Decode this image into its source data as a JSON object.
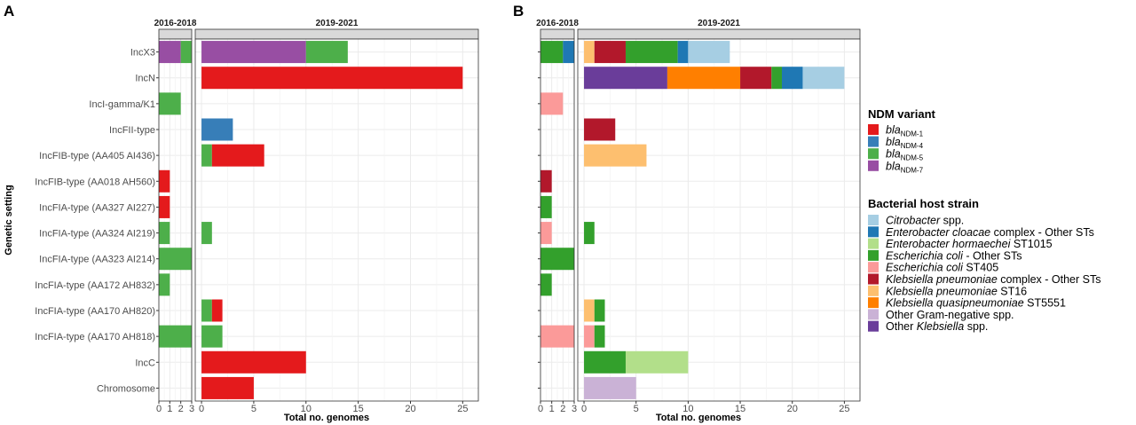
{
  "chart_data": [
    {
      "panel": "A",
      "type": "bar",
      "orientation": "horizontal",
      "stacked": true,
      "ylabel": "Genetic setting",
      "xlabel": "Total no. genomes",
      "categories": [
        "IncX3",
        "IncN",
        "IncI-gamma/K1",
        "IncFII-type",
        "IncFIB-type (AA405 AI436)",
        "IncFIB-type (AA018 AH560)",
        "IncFIA-type (AA327 AI227)",
        "IncFIA-type (AA324 AI219)",
        "IncFIA-type (AA323 AI214)",
        "IncFIA-type (AA172 AH832)",
        "IncFIA-type (AA170 AH820)",
        "IncFIA-type (AA170 AH818)",
        "IncC",
        "Chromosome"
      ],
      "facets": [
        {
          "label": "2016-2018",
          "xlim": [
            0,
            3
          ],
          "ticks": [
            0,
            1,
            2,
            3
          ],
          "bars": [
            {
              "category": "IncX3",
              "segments": [
                {
                  "series": "bla NDM-7",
                  "value": 2
                },
                {
                  "series": "bla NDM-5",
                  "value": 1
                }
              ]
            },
            {
              "category": "IncI-gamma/K1",
              "segments": [
                {
                  "series": "bla NDM-5",
                  "value": 2
                }
              ]
            },
            {
              "category": "IncFIB-type (AA018 AH560)",
              "segments": [
                {
                  "series": "bla NDM-1",
                  "value": 1
                }
              ]
            },
            {
              "category": "IncFIA-type (AA327 AI227)",
              "segments": [
                {
                  "series": "bla NDM-1",
                  "value": 1
                }
              ]
            },
            {
              "category": "IncFIA-type (AA324 AI219)",
              "segments": [
                {
                  "series": "bla NDM-5",
                  "value": 1
                }
              ]
            },
            {
              "category": "IncFIA-type (AA323 AI214)",
              "segments": [
                {
                  "series": "bla NDM-5",
                  "value": 3
                }
              ]
            },
            {
              "category": "IncFIA-type (AA172 AH832)",
              "segments": [
                {
                  "series": "bla NDM-5",
                  "value": 1
                }
              ]
            },
            {
              "category": "IncFIA-type (AA170 AH818)",
              "segments": [
                {
                  "series": "bla NDM-5",
                  "value": 3
                }
              ]
            }
          ]
        },
        {
          "label": "2019-2021",
          "xlim": [
            -0.6,
            26.5
          ],
          "ticks": [
            0,
            5,
            10,
            15,
            20,
            25
          ],
          "bars": [
            {
              "category": "IncX3",
              "segments": [
                {
                  "series": "bla NDM-7",
                  "value": 10
                },
                {
                  "series": "bla NDM-5",
                  "value": 4
                }
              ]
            },
            {
              "category": "IncN",
              "segments": [
                {
                  "series": "bla NDM-1",
                  "value": 25
                }
              ]
            },
            {
              "category": "IncFII-type",
              "segments": [
                {
                  "series": "bla NDM-4",
                  "value": 3
                }
              ]
            },
            {
              "category": "IncFIB-type (AA405 AI436)",
              "segments": [
                {
                  "series": "bla NDM-5",
                  "value": 1
                },
                {
                  "series": "bla NDM-1",
                  "value": 5
                }
              ]
            },
            {
              "category": "IncFIA-type (AA324 AI219)",
              "segments": [
                {
                  "series": "bla NDM-5",
                  "value": 1
                }
              ]
            },
            {
              "category": "IncFIA-type (AA170 AH820)",
              "segments": [
                {
                  "series": "bla NDM-5",
                  "value": 1
                },
                {
                  "series": "bla NDM-1",
                  "value": 1
                }
              ]
            },
            {
              "category": "IncFIA-type (AA170 AH818)",
              "segments": [
                {
                  "series": "bla NDM-5",
                  "value": 2
                }
              ]
            },
            {
              "category": "IncC",
              "segments": [
                {
                  "series": "bla NDM-1",
                  "value": 10
                }
              ]
            },
            {
              "category": "Chromosome",
              "segments": [
                {
                  "series": "bla NDM-1",
                  "value": 5
                }
              ]
            }
          ]
        }
      ]
    },
    {
      "panel": "B",
      "type": "bar",
      "orientation": "horizontal",
      "stacked": true,
      "xlabel": "Total  no.  genomes",
      "categories": [
        "IncX3",
        "IncN",
        "IncI-gamma/K1",
        "IncFII-type",
        "IncFIB-type (AA405 AI436)",
        "IncFIB-type (AA018 AH560)",
        "IncFIA-type (AA327 AI227)",
        "IncFIA-type (AA324 AI219)",
        "IncFIA-type (AA323 AI214)",
        "IncFIA-type (AA172 AH832)",
        "IncFIA-type (AA170 AH820)",
        "IncFIA-type (AA170 AH818)",
        "IncC",
        "Chromosome"
      ],
      "facets": [
        {
          "label": "2016-2018",
          "xlim": [
            0,
            3
          ],
          "ticks": [
            0,
            1,
            2,
            3
          ],
          "bars": [
            {
              "category": "IncX3",
              "segments": [
                {
                  "series": "Escherichia coli - Other STs",
                  "value": 2
                },
                {
                  "series": "Enterobacter cloacae complex - Other STs",
                  "value": 1
                }
              ]
            },
            {
              "category": "IncI-gamma/K1",
              "segments": [
                {
                  "series": "Escherichia coli ST405",
                  "value": 2
                }
              ]
            },
            {
              "category": "IncFIB-type (AA018 AH560)",
              "segments": [
                {
                  "series": "Klebsiella pneumoniae complex - Other STs",
                  "value": 1
                }
              ]
            },
            {
              "category": "IncFIA-type (AA327 AI227)",
              "segments": [
                {
                  "series": "Escherichia coli - Other STs",
                  "value": 1
                }
              ]
            },
            {
              "category": "IncFIA-type (AA324 AI219)",
              "segments": [
                {
                  "series": "Escherichia coli ST405",
                  "value": 1
                }
              ]
            },
            {
              "category": "IncFIA-type (AA323 AI214)",
              "segments": [
                {
                  "series": "Escherichia coli - Other STs",
                  "value": 3
                }
              ]
            },
            {
              "category": "IncFIA-type (AA172 AH832)",
              "segments": [
                {
                  "series": "Escherichia coli - Other STs",
                  "value": 1
                }
              ]
            },
            {
              "category": "IncFIA-type (AA170 AH818)",
              "segments": [
                {
                  "series": "Escherichia coli ST405",
                  "value": 3
                }
              ]
            }
          ]
        },
        {
          "label": "2019-2021",
          "xlim": [
            -0.6,
            26.5
          ],
          "ticks": [
            0,
            5,
            10,
            15,
            20,
            25
          ],
          "bars": [
            {
              "category": "IncX3",
              "segments": [
                {
                  "series": "Klebsiella pneumoniae ST16",
                  "value": 1
                },
                {
                  "series": "Klebsiella pneumoniae complex - Other STs",
                  "value": 3
                },
                {
                  "series": "Escherichia coli - Other STs",
                  "value": 5
                },
                {
                  "series": "Enterobacter cloacae complex - Other STs",
                  "value": 1
                },
                {
                  "series": "Citrobacter spp.",
                  "value": 4
                }
              ]
            },
            {
              "category": "IncN",
              "segments": [
                {
                  "series": "Other Klebsiella spp.",
                  "value": 8
                },
                {
                  "series": "Klebsiella quasipneumoniae ST5551",
                  "value": 7
                },
                {
                  "series": "Klebsiella pneumoniae complex - Other STs",
                  "value": 3
                },
                {
                  "series": "Escherichia coli - Other STs",
                  "value": 1
                },
                {
                  "series": "Enterobacter cloacae complex - Other STs",
                  "value": 2
                },
                {
                  "series": "Citrobacter spp.",
                  "value": 4
                }
              ]
            },
            {
              "category": "IncFII-type",
              "segments": [
                {
                  "series": "Klebsiella pneumoniae complex - Other STs",
                  "value": 3
                }
              ]
            },
            {
              "category": "IncFIB-type (AA405 AI436)",
              "segments": [
                {
                  "series": "Klebsiella pneumoniae ST16",
                  "value": 6
                }
              ]
            },
            {
              "category": "IncFIA-type (AA324 AI219)",
              "segments": [
                {
                  "series": "Escherichia coli - Other STs",
                  "value": 1
                }
              ]
            },
            {
              "category": "IncFIA-type (AA170 AH820)",
              "segments": [
                {
                  "series": "Klebsiella pneumoniae ST16",
                  "value": 1
                },
                {
                  "series": "Escherichia coli - Other STs",
                  "value": 1
                }
              ]
            },
            {
              "category": "IncFIA-type (AA170 AH818)",
              "segments": [
                {
                  "series": "Escherichia coli ST405",
                  "value": 1
                },
                {
                  "series": "Escherichia coli - Other STs",
                  "value": 1
                }
              ]
            },
            {
              "category": "IncC",
              "segments": [
                {
                  "series": "Escherichia coli - Other STs",
                  "value": 4
                },
                {
                  "series": "Enterobacter hormaechei ST1015",
                  "value": 6
                }
              ]
            },
            {
              "category": "Chromosome",
              "segments": [
                {
                  "series": "Other Gram-negative spp.",
                  "value": 5
                }
              ]
            }
          ]
        }
      ]
    }
  ],
  "legends": [
    {
      "title": "NDM variant",
      "items": [
        {
          "series": "bla NDM-1",
          "color": "#e41a1c",
          "parts": [
            {
              "t": "bla",
              "i": true
            },
            {
              "t": "NDM-1",
              "sub": true
            }
          ]
        },
        {
          "series": "bla NDM-4",
          "color": "#377eb8",
          "parts": [
            {
              "t": "bla",
              "i": true
            },
            {
              "t": "NDM-4",
              "sub": true
            }
          ]
        },
        {
          "series": "bla NDM-5",
          "color": "#4daf4a",
          "parts": [
            {
              "t": "bla",
              "i": true
            },
            {
              "t": "NDM-5",
              "sub": true
            }
          ]
        },
        {
          "series": "bla NDM-7",
          "color": "#984ea3",
          "parts": [
            {
              "t": "bla",
              "i": true
            },
            {
              "t": "NDM-7",
              "sub": true
            }
          ]
        }
      ]
    },
    {
      "title": "Bacterial host strain",
      "items": [
        {
          "series": "Citrobacter spp.",
          "color": "#a6cee3",
          "parts": [
            {
              "t": "Citrobacter",
              "i": true
            },
            {
              "t": " spp."
            }
          ]
        },
        {
          "series": "Enterobacter cloacae complex - Other STs",
          "color": "#1f78b4",
          "parts": [
            {
              "t": "Enterobacter cloacae",
              "i": true
            },
            {
              "t": " complex - Other STs"
            }
          ]
        },
        {
          "series": "Enterobacter hormaechei ST1015",
          "color": "#b2df8a",
          "parts": [
            {
              "t": "Enterobacter hormaechei",
              "i": true
            },
            {
              "t": " ST1015"
            }
          ]
        },
        {
          "series": "Escherichia coli - Other STs",
          "color": "#33a02c",
          "parts": [
            {
              "t": "Escherichia coli",
              "i": true
            },
            {
              "t": " - Other STs"
            }
          ]
        },
        {
          "series": "Escherichia coli ST405",
          "color": "#fb9a99",
          "parts": [
            {
              "t": "Escherichia coli",
              "i": true
            },
            {
              "t": " ST405"
            }
          ]
        },
        {
          "series": "Klebsiella pneumoniae complex - Other STs",
          "color": "#b2182b",
          "parts": [
            {
              "t": "Klebsiella pneumoniae",
              "i": true
            },
            {
              "t": " complex - Other STs"
            }
          ]
        },
        {
          "series": "Klebsiella pneumoniae ST16",
          "color": "#fdbf6f",
          "parts": [
            {
              "t": "Klebsiella pneumoniae",
              "i": true
            },
            {
              "t": " ST16"
            }
          ]
        },
        {
          "series": "Klebsiella quasipneumoniae ST5551",
          "color": "#ff7f00",
          "parts": [
            {
              "t": "Klebsiella quasipneumoniae",
              "i": true
            },
            {
              "t": " ST5551"
            }
          ]
        },
        {
          "series": "Other Gram-negative spp.",
          "color": "#cab2d6",
          "parts": [
            {
              "t": "Other Gram-negative spp."
            }
          ]
        },
        {
          "series": "Other Klebsiella spp.",
          "color": "#6a3d9a",
          "parts": [
            {
              "t": "Other "
            },
            {
              "t": "Klebsiella",
              "i": true
            },
            {
              "t": " spp."
            }
          ]
        }
      ]
    }
  ]
}
